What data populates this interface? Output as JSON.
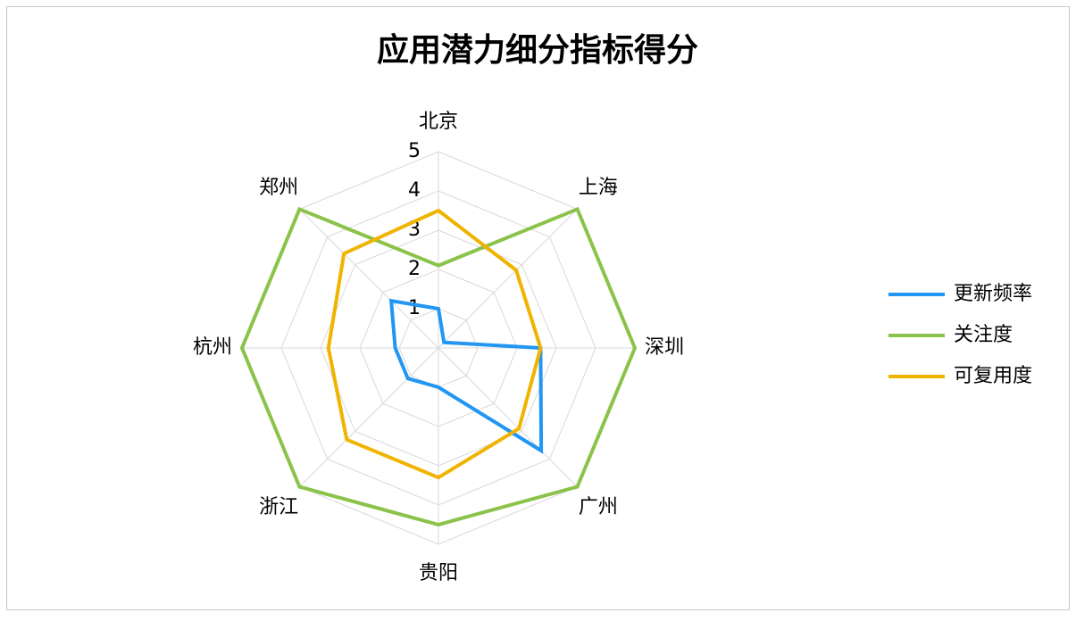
{
  "chart_data": {
    "type": "radar",
    "title": "应用潜力细分指标得分",
    "categories": [
      "北京",
      "上海",
      "深圳",
      "广州",
      "贵阳",
      "浙江",
      "杭州",
      "郑州"
    ],
    "ylim": [
      0,
      5
    ],
    "yticks": [
      1,
      2,
      3,
      4,
      5
    ],
    "grid": true,
    "legend": "right",
    "series": [
      {
        "name": "更新频率",
        "color": "#2196f3",
        "values": [
          1.0,
          0.2,
          2.6,
          3.7,
          1.0,
          1.1,
          1.1,
          1.7
        ]
      },
      {
        "name": "关注度",
        "color": "#8bc34a",
        "values": [
          2.1,
          5,
          5,
          5,
          4.5,
          5,
          5,
          5
        ]
      },
      {
        "name": "可复用度",
        "color": "#f0b400",
        "values": [
          3.5,
          2.8,
          2.6,
          2.9,
          3.3,
          3.3,
          2.8,
          3.4
        ]
      }
    ]
  }
}
